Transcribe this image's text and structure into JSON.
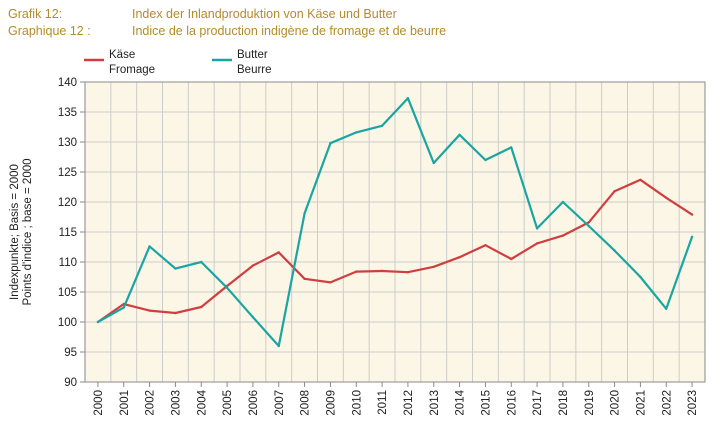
{
  "header": {
    "rows": [
      {
        "label": "Grafik 12:",
        "text": "Index der Inlandproduktion von Käse und Butter"
      },
      {
        "label": "Graphique 12 :",
        "text": "Indice de la production indigène de fromage et de beurre"
      }
    ]
  },
  "chart_data": {
    "type": "line",
    "ylabel_line1": "Indexpunkte; Basis = 2000",
    "ylabel_line2": "Points d'indice ; base = 2000",
    "ylim": [
      90,
      140
    ],
    "yticks": [
      90,
      95,
      100,
      105,
      110,
      115,
      120,
      125,
      130,
      135,
      140
    ],
    "grid": true,
    "legend_position": "top-left",
    "x": [
      "2000",
      "2001",
      "2002",
      "2003",
      "2004",
      "2005",
      "2006",
      "2007",
      "2008",
      "2009",
      "2010",
      "2011",
      "2012",
      "2013",
      "2014",
      "2015",
      "2016",
      "2017",
      "2018",
      "2019",
      "2020",
      "2021",
      "2022",
      "2023"
    ],
    "series": [
      {
        "name": "Käse",
        "name2": "Fromage",
        "color": "#cf3f3f",
        "values": [
          100.0,
          103.0,
          101.9,
          101.5,
          102.5,
          106.0,
          109.4,
          111.6,
          107.2,
          106.6,
          108.4,
          108.5,
          108.3,
          109.2,
          110.8,
          112.8,
          110.5,
          113.1,
          114.4,
          116.6,
          121.8,
          123.7,
          120.7,
          117.9
        ]
      },
      {
        "name": "Butter",
        "name2": "Beurre",
        "color": "#1aa5a3",
        "values": [
          100.0,
          102.4,
          112.6,
          108.9,
          110.0,
          105.7,
          100.8,
          96.0,
          118.1,
          129.8,
          131.6,
          132.7,
          137.3,
          126.5,
          131.2,
          127.0,
          129.1,
          115.6,
          120.0,
          116.0,
          111.9,
          107.5,
          102.2,
          114.2
        ]
      }
    ]
  }
}
